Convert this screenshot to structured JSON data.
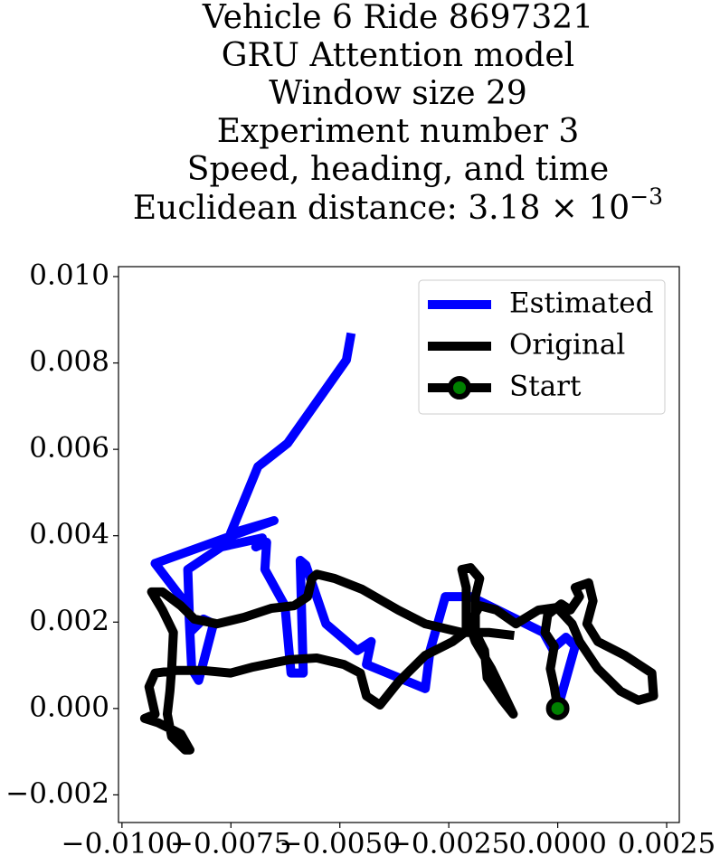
{
  "chart_data": {
    "type": "line",
    "title": [
      "Vehicle 6 Ride 8697321",
      "GRU Attention model",
      "Window size 29",
      "Experiment number 3",
      "Speed, heading, and time"
    ],
    "distance_text": "Euclidean distance: 3.18 × 10",
    "distance_exponent": "−3",
    "xlim": [
      -0.01008,
      0.00279
    ],
    "ylim": [
      -0.00264,
      0.01023
    ],
    "xticks": [
      {
        "value": -0.01,
        "label": "−0.0100"
      },
      {
        "value": -0.0075,
        "label": "−0.0075"
      },
      {
        "value": -0.005,
        "label": "−0.0050"
      },
      {
        "value": -0.0025,
        "label": "−0.0025"
      },
      {
        "value": 0,
        "label": "0.0000"
      },
      {
        "value": 0.0025,
        "label": "0.0025"
      }
    ],
    "yticks": [
      {
        "value": -0.002,
        "label": "−0.002"
      },
      {
        "value": 0,
        "label": "0.000"
      },
      {
        "value": 0.002,
        "label": "0.002"
      },
      {
        "value": 0.004,
        "label": "0.004"
      },
      {
        "value": 0.006,
        "label": "0.006"
      },
      {
        "value": 0.008,
        "label": "0.008"
      },
      {
        "value": 0.01,
        "label": "0.010"
      }
    ],
    "legend": "upper right",
    "series": [
      {
        "name": "Estimated",
        "color": "#0000ff",
        "x": [
          0,
          8e-05,
          0.0004,
          0.00019,
          -0.00012,
          -0.00033,
          -0.002,
          -0.00258,
          -0.00293,
          -0.00304,
          -0.00439,
          -0.00428,
          -0.0046,
          -0.00532,
          -0.00578,
          -0.00591,
          -0.00584,
          -0.00612,
          -0.00626,
          -0.00672,
          -0.00668,
          -0.00693,
          -0.00678,
          -0.00772,
          -0.00849,
          -0.00844,
          -0.00813,
          -0.0079,
          -0.00824,
          -0.0084,
          -0.00847,
          -0.00924,
          -0.00651,
          -0.00751,
          -0.00688,
          -0.0062,
          -0.00485,
          -0.00474
        ],
        "y": [
          0,
          0.00029,
          0.00144,
          0.00165,
          0.00138,
          0.00176,
          0.00259,
          0.00259,
          0.00134,
          0.00046,
          0.00102,
          0.00155,
          0.00134,
          0.00196,
          0.00332,
          0.00343,
          0.00082,
          0.00082,
          0.00238,
          0.00322,
          0.00385,
          0.00374,
          0.00395,
          0.00374,
          0.00322,
          0.00176,
          0.00207,
          0.00196,
          0.00065,
          0.00092,
          0.00234,
          0.00336,
          0.00435,
          0.00405,
          0.0056,
          0.00614,
          0.00807,
          0.00869
        ]
      },
      {
        "name": "Original",
        "color": "#000000",
        "x": [
          0,
          -8e-05,
          -0.00017,
          -8e-05,
          -0.00029,
          -0.00023,
          8e-05,
          0.00029,
          0.0005,
          0.0004,
          0.00071,
          0.00081,
          0.00067,
          0.00092,
          0.00154,
          0.00216,
          0.0022,
          0.00185,
          0.00144,
          0.00092,
          0.0005,
          0.00033,
          -2e-05,
          -0.00044,
          -0.00096,
          -0.00141,
          -0.00179,
          -0.00196,
          -0.0021,
          -0.0021,
          -0.0022,
          -0.002,
          -0.00179,
          -0.00189,
          -0.00189,
          -0.00168,
          -0.00162,
          -0.00127,
          -0.00102,
          -0.00127,
          -0.00152,
          -0.00189,
          -0.002,
          -0.00241,
          -0.00304,
          -0.00366,
          -0.00408,
          -0.00439,
          -0.00453,
          -0.00491,
          -0.00553,
          -0.00616,
          -0.00699,
          -0.00751,
          -0.00813,
          -0.00876,
          -0.00924,
          -0.00938,
          -0.00924,
          -0.00948,
          -0.00917,
          -0.00865,
          -0.00844,
          -0.00855,
          -0.00886,
          -0.00896,
          -0.0089,
          -0.00886,
          -0.00882,
          -0.00907,
          -0.00932,
          -0.00907,
          -0.00865,
          -0.00834,
          -0.00782,
          -0.0072,
          -0.00657,
          -0.00605,
          -0.00574,
          -0.00564,
          -0.00553,
          -0.00512,
          -0.00449,
          -0.00366,
          -0.00304,
          -0.0022,
          -0.00158,
          -0.001
        ],
        "y": [
          0,
          0.0005,
          0.00092,
          0.00144,
          0.00176,
          0.00217,
          0.00242,
          0.00228,
          0.00259,
          0.0028,
          0.00291,
          0.00249,
          0.00196,
          0.00155,
          0.00123,
          0.00082,
          0.00029,
          0.00019,
          0.0004,
          0.00092,
          0.00155,
          0.00196,
          0.00234,
          0.00228,
          0.00196,
          0.00228,
          0.00238,
          0.00207,
          0.00176,
          0.0028,
          0.00322,
          0.00326,
          0.00301,
          0.00259,
          0.00176,
          0.00134,
          0.00071,
          0.00019,
          -0.00013,
          0.0004,
          0.00092,
          0.00155,
          0.00186,
          0.00155,
          0.00123,
          0.00061,
          8e-05,
          0.00029,
          0.00082,
          0.00102,
          0.00117,
          0.00113,
          0.00096,
          0.00082,
          0.00088,
          0.00088,
          0.00082,
          0.0005,
          -0.00013,
          -0.00023,
          -0.00033,
          -0.00059,
          -0.00096,
          -0.00096,
          -0.00065,
          -0.00013,
          0.0004,
          0.00092,
          0.00176,
          0.00228,
          0.0027,
          0.0027,
          0.00238,
          0.00207,
          0.00196,
          0.00211,
          0.00232,
          0.00238,
          0.00259,
          0.00301,
          0.00311,
          0.00301,
          0.00276,
          0.00228,
          0.00196,
          0.00176,
          0.00176,
          0.00169
        ]
      },
      {
        "name": "Start",
        "color": "#000000",
        "marker_color": "#008000",
        "x": [
          0
        ],
        "y": [
          0
        ]
      }
    ]
  }
}
